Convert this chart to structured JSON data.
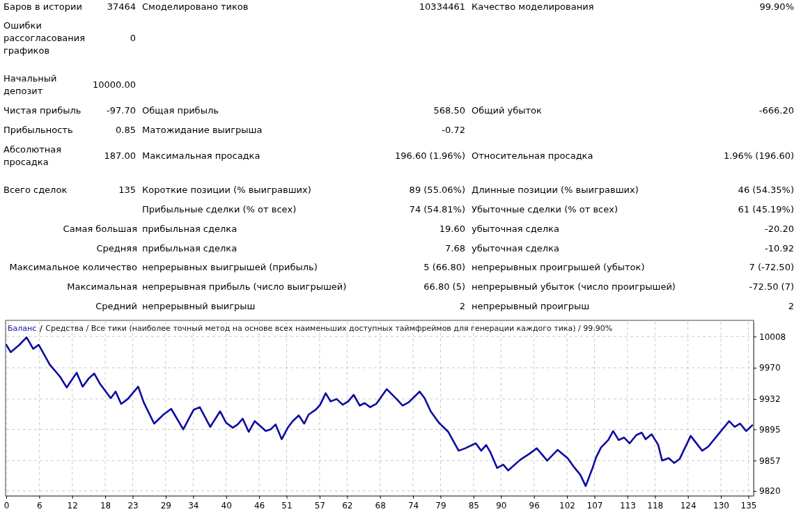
{
  "chart_data": [
    {
      "type": "other",
      "annotations": [
        "Баров в истории",
        "37464",
        "Смоделировано тиков",
        "10334461",
        "Качество моделирования",
        "99.90%",
        "Ошибки рассогласования графиков",
        "0",
        "Начальный депозит",
        "10000.00",
        "Чистая прибыль",
        "-97.70",
        "Общая прибыль",
        "568.50",
        "Общий убыток",
        "-666.20",
        "Прибыльность",
        "0.85",
        "Матожидание выигрыша",
        "-0.72",
        "Абсолютная просадка",
        "187.00",
        "Максимальная просадка",
        "196.60 (1.96%)",
        "Относительная просадка",
        "1.96% (196.60)",
        "Всего сделок",
        "135",
        "Короткие позиции (% выигравших)",
        "89 (55.06%)",
        "Длинные позиции (% выигравших)",
        "46 (54.35%)",
        "Прибыльные сделки (% от всех)",
        "74 (54.81%)",
        "Убыточные сделки (% от всех)",
        "61 (45.19%)",
        "Самая большая",
        "прибыльная сделка",
        "19.60",
        "убыточная сделка",
        "-20.20",
        "Средняя",
        "прибыльная сделка",
        "7.68",
        "убыточная сделка",
        "-10.92",
        "Максимальное количество",
        "непрерывных выигрышей (прибыль)",
        "5 (66.80)",
        "непрерывных проигрышей (убыток)",
        "7 (-72.50)",
        "Максимальная",
        "непрерывная прибыль (число выигрышей)",
        "66.80 (5)",
        "непрерывный убыток (число проигрышей)",
        "-72.50 (7)",
        "Средний",
        "непрерывный выигрыш",
        "2",
        "непрерывный проигрыш",
        "2"
      ]
    },
    {
      "type": "line",
      "title": "Средства / Все тики (наиболее точный метод на основе всех наименьших доступных таймфреймов для генерации каждого тика) / 99.90%",
      "x": [
        0,
        0.8,
        2.4,
        3.7,
        4.9,
        5.9,
        7.9,
        9.8,
        11.0,
        12.8,
        13.9,
        15.0,
        16.0,
        17.0,
        19.0,
        19.9,
        20.9,
        22.1,
        24.0,
        25.0,
        26.9,
        28.6,
        30.0,
        32.2,
        34.1,
        35.2,
        37.1,
        38.9,
        40.0,
        41.2,
        42.1,
        43.0,
        44.1,
        45.2,
        47.2,
        48.1,
        49.0,
        50.1,
        51.3,
        52.1,
        53.2,
        54.2,
        55.0,
        56.3,
        57.1,
        58.1,
        59.0,
        60.1,
        61.2,
        62.2,
        63.2,
        64.3,
        65.2,
        66.2,
        67.3,
        69.2,
        71.0,
        72.1,
        73.2,
        75.2,
        76.1,
        77.2,
        78.7,
        80.4,
        82.3,
        83.5,
        85.4,
        86.4,
        87.3,
        88.0,
        89.3,
        90.4,
        91.3,
        93.5,
        95.1,
        96.5,
        98.4,
        100.3,
        102.1,
        103.4,
        104.4,
        105.4,
        106.6,
        107.3,
        108.2,
        109.5,
        110.4,
        111.4,
        112.4,
        113.4,
        114.6,
        115.6,
        116.3,
        117.4,
        118.6,
        119.3,
        120.5,
        121.5,
        122.5,
        124.5,
        126.6,
        127.7,
        131.5,
        132.5,
        133.5,
        134.6,
        135.7
      ],
      "series": [
        {
          "name": "Баланс",
          "color": "#0c0ca0",
          "values": [
            9998,
            9989,
            9998,
            10007,
            9993,
            9998,
            9974,
            9959,
            9946,
            9964,
            9947,
            9957,
            9963,
            9951,
            9933,
            9941,
            9926,
            9932,
            9947,
            9928,
            9902,
            9913,
            9920,
            9895,
            9919,
            9922,
            9898,
            9917,
            9903,
            9897,
            9901,
            9908,
            9892,
            9905,
            9893,
            9895,
            9901,
            9883,
            9898,
            9905,
            9912,
            9902,
            9913,
            9919,
            9925,
            9939,
            9929,
            9932,
            9925,
            9929,
            9937,
            9924,
            9927,
            9922,
            9926,
            9944,
            9932,
            9924,
            9928,
            9941,
            9933,
            9917,
            9903,
            9892,
            9869,
            9872,
            9878,
            9869,
            9876,
            9868,
            9848,
            9852,
            9845,
            9858,
            9865,
            9872,
            9857,
            9870,
            9860,
            9848,
            9840,
            9826,
            9847,
            9861,
            9873,
            9882,
            9893,
            9882,
            9885,
            9878,
            9888,
            9891,
            9883,
            9889,
            9876,
            9857,
            9860,
            9854,
            9859,
            9887,
            9869,
            9874,
            9905,
            9898,
            9902,
            9893,
            9900
          ]
        }
      ],
      "xlim": [
        0,
        135.7
      ],
      "xticks": [
        0,
        6,
        12,
        18,
        23,
        29,
        34,
        40,
        46,
        51,
        57,
        62,
        68,
        74,
        79,
        85,
        90,
        96,
        102,
        107,
        113,
        118,
        124,
        130,
        135
      ],
      "ylim": [
        9814,
        10026
      ],
      "yticks": [
        9820,
        9857,
        9895,
        9932,
        9970,
        10008
      ],
      "grid": true,
      "legend": "top left"
    }
  ]
}
